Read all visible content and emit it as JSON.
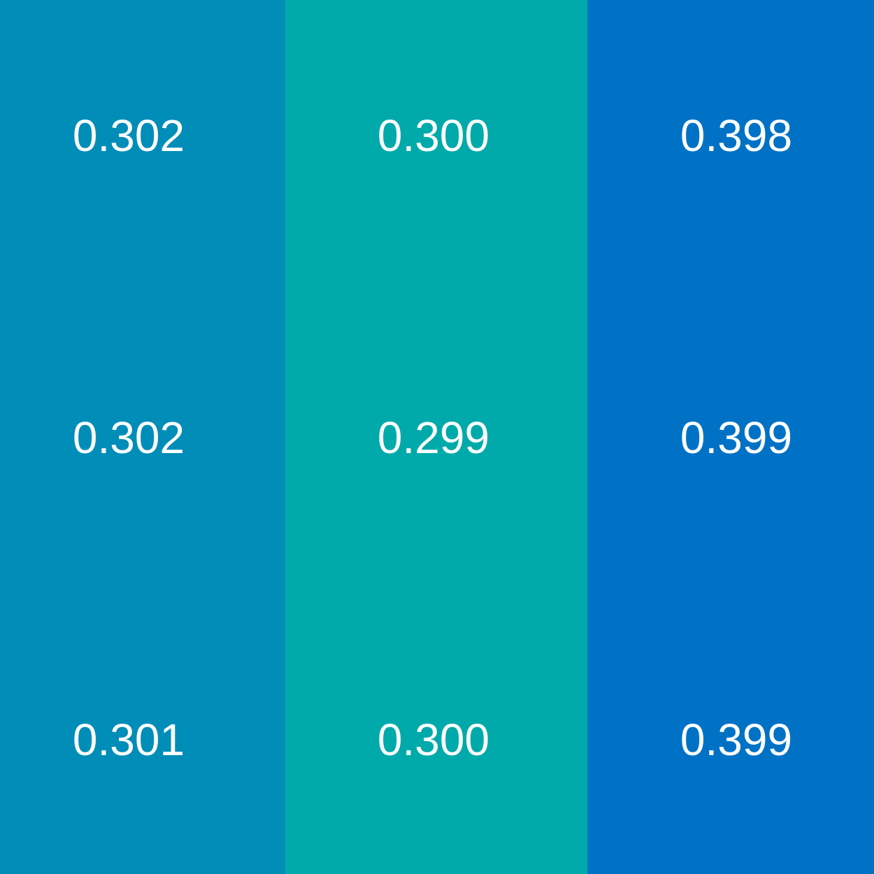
{
  "columns": [
    {
      "color": "#008db8",
      "values": [
        "0.302",
        "0.302",
        "0.301"
      ]
    },
    {
      "color": "#00aaaa",
      "values": [
        "0.300",
        "0.299",
        "0.300"
      ]
    },
    {
      "color": "#0072c6",
      "values": [
        "0.398",
        "0.399",
        "0.399"
      ]
    }
  ],
  "text_color": "#ffffff"
}
